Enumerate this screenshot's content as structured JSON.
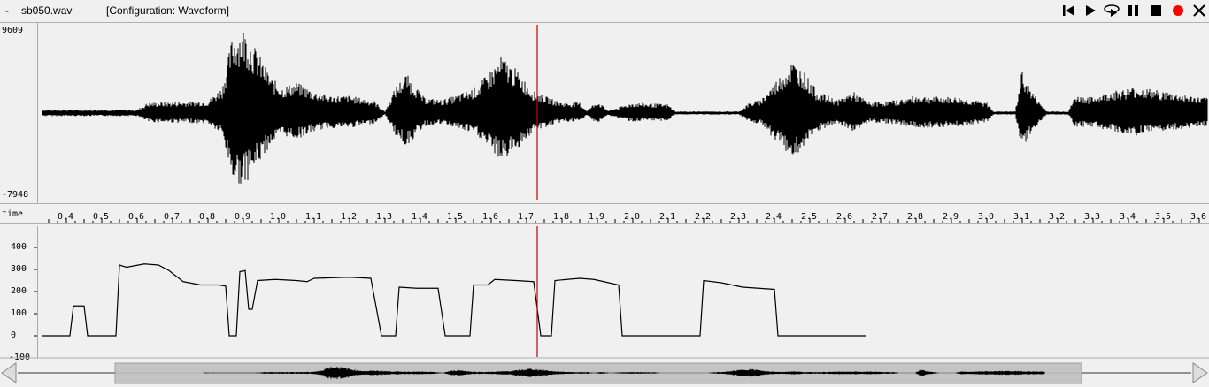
{
  "titlebar": {
    "menu_glyph": "-",
    "filename": "sb050.wav",
    "configuration": "[Configuration: Waveform]",
    "controls": [
      "skip-to-start-icon",
      "play-icon",
      "play-selection-icon",
      "pause-icon",
      "stop-icon",
      "record-icon",
      "close-icon"
    ]
  },
  "waveform": {
    "ymax_label": "9609",
    "ymin_label": "-7948"
  },
  "time_axis": {
    "label": "time",
    "ticks": [
      "0.4",
      "0.5",
      "0.6",
      "0.7",
      "0.8",
      "0.9",
      "1.0",
      "1.1",
      "1.2",
      "1.3",
      "1.4",
      "1.5",
      "1.6",
      "1.7",
      "1.8",
      "1.9",
      "2.0",
      "2.1",
      "2.2",
      "2.3",
      "2.4",
      "2.5",
      "2.6",
      "2.7",
      "2.8",
      "2.9",
      "3.0",
      "3.1",
      "3.2",
      "3.3",
      "3.4",
      "3.5",
      "3.6"
    ]
  },
  "pitch": {
    "y_ticks": [
      "400",
      "300",
      "200",
      "100",
      "0",
      "-100"
    ]
  },
  "cursor_time": 1.73,
  "colors": {
    "cursor": "#cc0000",
    "record": "#ff0000",
    "background": "#f0f0f0"
  }
}
